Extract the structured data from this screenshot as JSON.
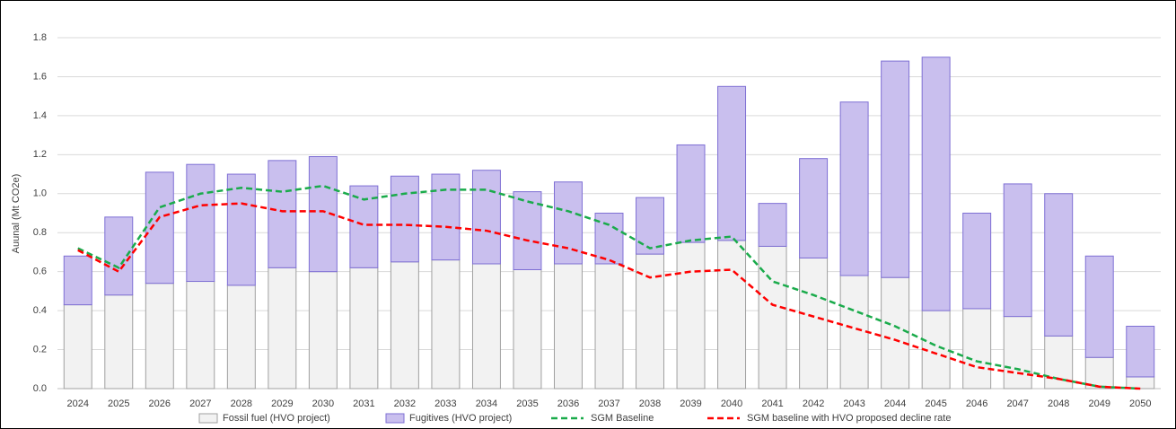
{
  "chart_data": {
    "type": "bar",
    "y_label": "Auunal (Mt CO2e)",
    "categories": [
      "2024",
      "2025",
      "2026",
      "2027",
      "2028",
      "2029",
      "2030",
      "2031",
      "2032",
      "2033",
      "2034",
      "2035",
      "2036",
      "2037",
      "2038",
      "2039",
      "2040",
      "2041",
      "2042",
      "2043",
      "2044",
      "2045",
      "2046",
      "2047",
      "2048",
      "2049",
      "2050"
    ],
    "series": [
      {
        "name": "Fossil fuel (HVO project)",
        "color": "#f2f2f2",
        "stroke": "#a0a0a0",
        "kind": "bar",
        "values": [
          0.43,
          0.48,
          0.54,
          0.55,
          0.53,
          0.62,
          0.6,
          0.62,
          0.65,
          0.66,
          0.64,
          0.61,
          0.64,
          0.64,
          0.69,
          0.75,
          0.76,
          0.73,
          0.67,
          0.58,
          0.57,
          0.4,
          0.41,
          0.37,
          0.27,
          0.16,
          0.06
        ]
      },
      {
        "name": "Fugitives (HVO project)",
        "color": "#c9bfee",
        "stroke": "#7e6fd4",
        "kind": "bar",
        "values": [
          0.25,
          0.4,
          0.57,
          0.6,
          0.57,
          0.55,
          0.59,
          0.42,
          0.44,
          0.44,
          0.48,
          0.4,
          0.42,
          0.26,
          0.29,
          0.5,
          0.79,
          0.22,
          0.51,
          0.89,
          1.11,
          1.3,
          0.49,
          0.68,
          0.73,
          0.52,
          0.26
        ]
      },
      {
        "name": "SGM Baseline",
        "color": "#1aab4b",
        "kind": "line",
        "values": [
          0.72,
          0.62,
          0.93,
          1.0,
          1.03,
          1.01,
          1.04,
          0.97,
          1.0,
          1.02,
          1.02,
          0.96,
          0.91,
          0.84,
          0.72,
          0.76,
          0.78,
          0.55,
          0.48,
          0.4,
          0.32,
          0.22,
          0.14,
          0.1,
          0.05,
          0.01,
          0.0
        ]
      },
      {
        "name": "SGM baseline with HVO proposed decline rate",
        "color": "#ff0000",
        "kind": "line",
        "values": [
          0.71,
          0.6,
          0.88,
          0.94,
          0.95,
          0.91,
          0.91,
          0.84,
          0.84,
          0.83,
          0.81,
          0.76,
          0.72,
          0.66,
          0.57,
          0.6,
          0.61,
          0.43,
          0.37,
          0.31,
          0.25,
          0.18,
          0.11,
          0.08,
          0.05,
          0.01,
          0.0
        ]
      }
    ],
    "ylim": [
      0,
      1.8
    ],
    "yticks": [
      {
        "value": 0,
        "label": "0.0"
      },
      0.2,
      0.4,
      0.6,
      0.8,
      {
        "value": 1,
        "label": "1.0"
      },
      1.2,
      1.4,
      1.6,
      1.8
    ],
    "grid": true,
    "legend": "bottom"
  }
}
